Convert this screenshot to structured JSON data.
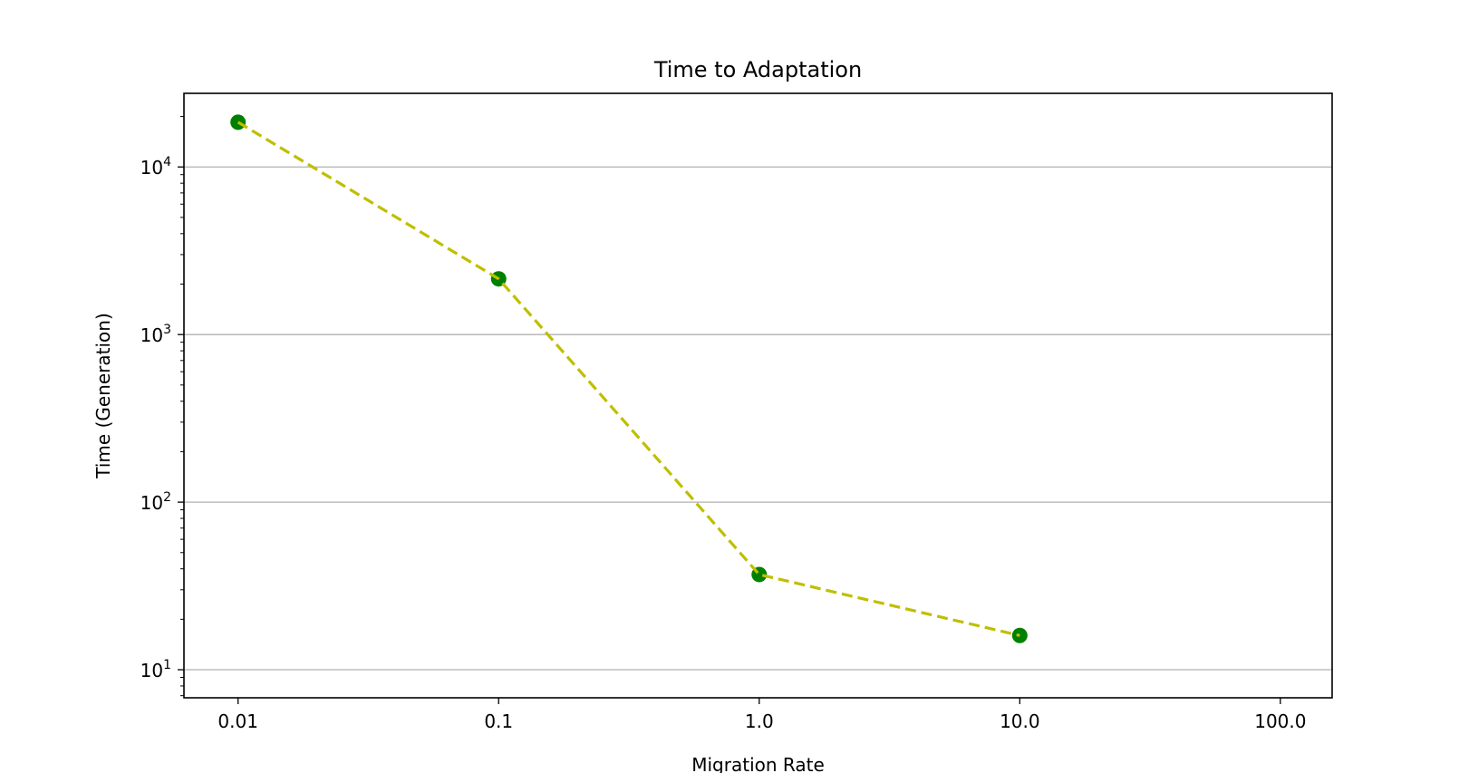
{
  "chart_data": {
    "type": "line",
    "title": "Time to Adaptation",
    "xlabel": "Migration Rate",
    "ylabel": "Time (Generation)",
    "xscale": "log",
    "yscale": "log",
    "x_ticks": [
      "0.01",
      "0.1",
      "1.0",
      "10.0",
      "100.0"
    ],
    "y_ticks": [
      {
        "base": "10",
        "exp": "1"
      },
      {
        "base": "10",
        "exp": "2"
      },
      {
        "base": "10",
        "exp": "3"
      },
      {
        "base": "10",
        "exp": "4"
      }
    ],
    "xlim": [
      0.0062,
      158
    ],
    "ylim": [
      6.8,
      27500
    ],
    "grid": "horizontal",
    "series": [
      {
        "x": [
          0.01,
          0.1,
          1.0,
          10.0
        ],
        "y": [
          18500,
          2150,
          37,
          16
        ],
        "line_color": "#bfbf00",
        "line_style": "dashed",
        "marker_color": "#008000"
      }
    ]
  }
}
